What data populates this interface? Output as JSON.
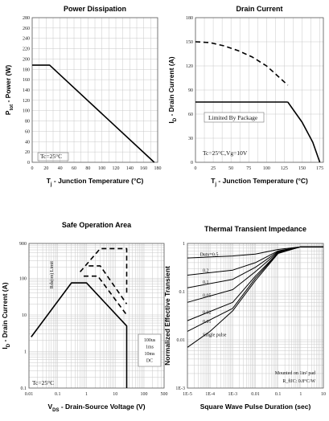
{
  "chart_data": [
    {
      "type": "line",
      "title": "Power Dissipation",
      "xlabel": "T_j - Junction Temperature (°C)",
      "ylabel": "P_tot - Power (W)",
      "xlim": [
        0,
        180
      ],
      "ylim": [
        0,
        280
      ],
      "xticks": [
        "0",
        "20",
        "40",
        "60",
        "80",
        "100",
        "120",
        "140",
        "160",
        "180"
      ],
      "yticks": [
        "0",
        "20",
        "40",
        "60",
        "80",
        "100",
        "120",
        "140",
        "160",
        "180",
        "200",
        "220",
        "240",
        "260",
        "280"
      ],
      "grid": true,
      "annotations": [
        "Tc=25°C"
      ],
      "series": [
        {
          "x": [
            0,
            25,
            175
          ],
          "y": [
            188,
            188,
            0
          ]
        }
      ]
    },
    {
      "type": "line",
      "title": "Drain Current",
      "xlabel": "T_j - Junction Temperature (°C)",
      "ylabel": "I_D - Drain Current (A)",
      "xlim": [
        0,
        180
      ],
      "ylim": [
        0,
        180
      ],
      "xticks": [
        "0",
        "25",
        "50",
        "75",
        "100",
        "125",
        "150",
        "175",
        "200"
      ],
      "yticks": [
        "0",
        "30",
        "60",
        "90",
        "120",
        "150",
        "180"
      ],
      "grid": true,
      "annotations": [
        "Limited By Package",
        "Tc=25°C,Vg=10V"
      ],
      "series": [
        {
          "name": "Limited By Package",
          "x": [
            0,
            130
          ],
          "y": [
            75,
            75
          ],
          "style": "solid"
        },
        {
          "x": [
            0,
            20,
            40,
            60,
            80,
            100,
            110,
            120,
            130
          ],
          "y": [
            150,
            149,
            145,
            139,
            131,
            120,
            112,
            104,
            96
          ],
          "style": "dashed"
        },
        {
          "x": [
            130,
            150,
            165,
            175
          ],
          "y": [
            75,
            50,
            25,
            0
          ],
          "style": "solid"
        }
      ]
    },
    {
      "type": "line",
      "title": "Safe Operation Area",
      "xlabel": "V_DS - Drain-Source Voltage (V)",
      "ylabel": "I_D - Drain Current (A)",
      "xscale": "log",
      "yscale": "log",
      "xlim": [
        0.01,
        500
      ],
      "ylim": [
        0.1,
        900
      ],
      "xticks": [
        "0.01",
        "0.1",
        "1",
        "10",
        "100",
        "500"
      ],
      "yticks": [
        "0.1",
        "1",
        "10",
        "100",
        "900"
      ],
      "grid": true,
      "annotations": [
        "Rds(on) Limit",
        "100us",
        "1ms",
        "10ms",
        "DC",
        "Tc=25°C"
      ],
      "series": [
        {
          "name": "DC",
          "x": [
            0.012,
            0.3,
            1.0,
            25,
            25
          ],
          "y": [
            2.5,
            75,
            75,
            5,
            0.1
          ],
          "style": "solid"
        },
        {
          "name": "10ms",
          "x": [
            0.8,
            2.5,
            25
          ],
          "y": [
            115,
            115,
            10
          ],
          "style": "dashed"
        },
        {
          "name": "1ms",
          "x": [
            1.2,
            3.0,
            25
          ],
          "y": [
            220,
            220,
            20
          ],
          "style": "dashed"
        },
        {
          "name": "100us",
          "x": [
            0.6,
            3.0,
            25,
            25
          ],
          "y": [
            150,
            650,
            650,
            40
          ],
          "style": "dashed"
        }
      ]
    },
    {
      "type": "line",
      "title": "Thermal Transient Impedance",
      "xlabel": "Square Wave Pulse Duration (sec)",
      "ylabel": "Normalized Effective Transient",
      "xscale": "log",
      "yscale": "log",
      "xlim": [
        1e-05,
        10
      ],
      "ylim": [
        0.001,
        1
      ],
      "xticks": [
        "1E-5",
        "1E-4",
        "1E-3",
        "0.01",
        "0.1",
        "1",
        "10"
      ],
      "yticks": [
        "1E-3",
        "0.01",
        "0.1",
        "1"
      ],
      "grid": true,
      "annotations": [
        "Mounted on 1in² pad",
        "R_θJC: 0.8°C/W"
      ],
      "series": [
        {
          "name": "Duty=0.5",
          "x": [
            1e-05,
            0.001,
            0.01,
            0.1,
            1,
            10
          ],
          "y": [
            0.5,
            0.55,
            0.6,
            0.75,
            0.85,
            0.85
          ]
        },
        {
          "name": "0.2",
          "x": [
            1e-05,
            0.001,
            0.01,
            0.1,
            1,
            10
          ],
          "y": [
            0.22,
            0.28,
            0.4,
            0.7,
            0.85,
            0.85
          ]
        },
        {
          "name": "0.1",
          "x": [
            1e-05,
            0.001,
            0.01,
            0.1,
            1,
            10
          ],
          "y": [
            0.12,
            0.18,
            0.32,
            0.68,
            0.85,
            0.85
          ]
        },
        {
          "name": "0.05",
          "x": [
            1e-05,
            0.001,
            0.01,
            0.1,
            1,
            10
          ],
          "y": [
            0.06,
            0.11,
            0.26,
            0.66,
            0.85,
            0.85
          ]
        },
        {
          "name": "0.02",
          "x": [
            1e-05,
            0.001,
            0.01,
            0.1,
            1,
            10
          ],
          "y": [
            0.025,
            0.06,
            0.21,
            0.64,
            0.85,
            0.85
          ]
        },
        {
          "name": "0.01",
          "x": [
            1e-05,
            0.001,
            0.01,
            0.1,
            1,
            10
          ],
          "y": [
            0.015,
            0.045,
            0.19,
            0.63,
            0.85,
            0.85
          ]
        },
        {
          "name": "Single pulse",
          "x": [
            1e-05,
            0.0001,
            0.001,
            0.01,
            0.1,
            1,
            10
          ],
          "y": [
            0.007,
            0.015,
            0.04,
            0.17,
            0.62,
            0.85,
            0.85
          ]
        }
      ]
    }
  ]
}
